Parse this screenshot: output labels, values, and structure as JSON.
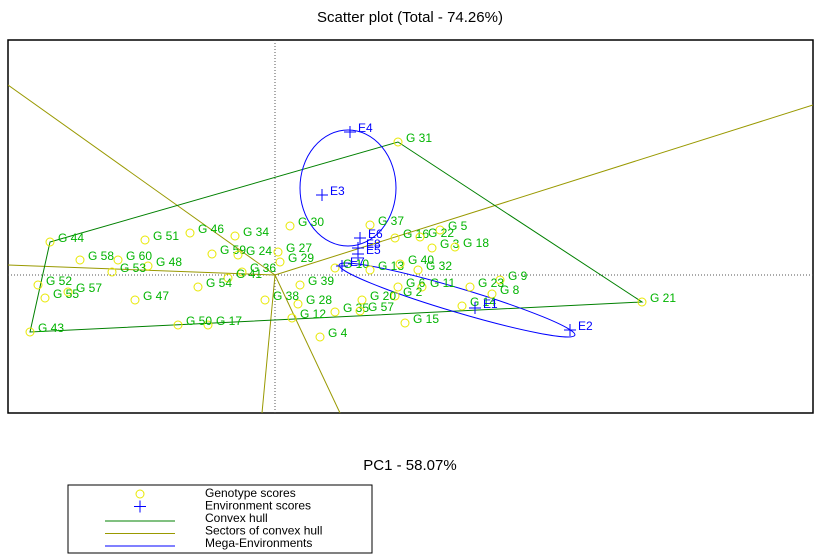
{
  "chart_data": {
    "type": "scatter",
    "title": "Scatter plot (Total - 74.26%)",
    "x_label": "PC1 - 58.07%",
    "xlim": [
      -13.35,
      26.9
    ],
    "ylim": [
      -6.9,
      11.75
    ],
    "origin_axes": true,
    "series": [
      {
        "name": "Genotype scores",
        "color": "#e8e800",
        "label_color": "#00b400",
        "labels": [
          "G 31",
          "G 44",
          "G 51",
          "G 46",
          "G 34",
          "G 30",
          "G 37",
          "G 5",
          "G 16",
          "G 22",
          "G 3",
          "G 18",
          "G 9",
          "G 8",
          "G 21",
          "G 23",
          "G 11",
          "G 6",
          "G 2",
          "G 14",
          "G 15",
          "G 35",
          "G 57",
          "G 20",
          "G 28",
          "G 12",
          "G 4",
          "G 38",
          "G 39",
          "G 29",
          "G 27",
          "G 10",
          "G 13",
          "G 40",
          "G 32",
          "G 36",
          "G 41",
          "G 54",
          "G 47",
          "G 17",
          "G 50",
          "G 52",
          "G 57",
          "G 55",
          "G 43",
          "G 58",
          "G 60",
          "G 48",
          "G 53",
          "G 59",
          "G 24"
        ],
        "x": [
          6.15,
          -11.25,
          -6.5,
          -4.25,
          -2,
          0.75,
          4.75,
          8.25,
          6,
          7.25,
          7.85,
          9,
          11.25,
          10.85,
          18.35,
          9.75,
          7.35,
          6.15,
          6,
          9.35,
          6.5,
          3,
          4.25,
          4.35,
          1.15,
          0.85,
          2.25,
          -0.5,
          1.25,
          0.25,
          0.15,
          3,
          4.75,
          6.25,
          7.15,
          -1.65,
          -2.35,
          -3.85,
          -7,
          -3.35,
          -4.85,
          -11.85,
          -10.35,
          -11.5,
          -12.25,
          -9.75,
          -7.85,
          -6.35,
          -8.15,
          -3.15,
          -1.85
        ],
        "values": [
          6.65,
          1.65,
          1.75,
          2.1,
          1.95,
          2.45,
          2.5,
          2.25,
          1.85,
          1.9,
          1.35,
          1.4,
          -0.25,
          -0.95,
          -1.35,
          -0.6,
          -0.6,
          -0.6,
          -1.05,
          -1.55,
          -2.4,
          -1.85,
          -1.8,
          -1.25,
          -1.45,
          -2.15,
          -3.1,
          -1.25,
          -0.5,
          0.65,
          1.15,
          0.35,
          0.25,
          0.55,
          0.25,
          0.15,
          -0.15,
          -0.6,
          -1.25,
          -2.5,
          -2.5,
          -0.5,
          -0.85,
          -1.15,
          -2.85,
          0.75,
          0.75,
          0.45,
          0.15,
          1.05,
          1.0
        ]
      },
      {
        "name": "Environment scores",
        "color": "#0000ff",
        "label_color": "#0000ff",
        "labels": [
          "E1",
          "E2",
          "E3",
          "E4",
          "E6",
          "E8",
          "E5",
          "E7"
        ],
        "x": [
          10,
          14.75,
          2.35,
          3.75,
          4.25,
          4.15,
          4.15,
          3.35
        ],
        "values": [
          -1.65,
          -2.75,
          4,
          7.15,
          1.85,
          1.35,
          1.05,
          0.45
        ]
      }
    ],
    "hull": {
      "name": "Convex hull",
      "color": "#008000",
      "vertices": [
        "G 44",
        "G 31",
        "G 21",
        "G 43"
      ]
    },
    "sectors": {
      "name": "Sectors of convex hull",
      "color": "#999900",
      "rays": [
        [
          -13.35,
          9.5
        ],
        [
          26.9,
          8.5
        ],
        [
          -13.35,
          0.5
        ],
        [
          -0.65,
          -6.9
        ],
        [
          3.25,
          -6.9
        ]
      ]
    },
    "mega_environments": {
      "name": "Mega-Environments",
      "color": "#0000ff",
      "ellipses": [
        {
          "cx": 3.65,
          "cy": 4.35,
          "rx": 2.4,
          "ry": 2.9,
          "angle": 0
        },
        {
          "cx": 9.1,
          "cy": -1.25,
          "rx": 6.15,
          "ry": 0.6,
          "angle": -16.6
        }
      ]
    }
  }
}
